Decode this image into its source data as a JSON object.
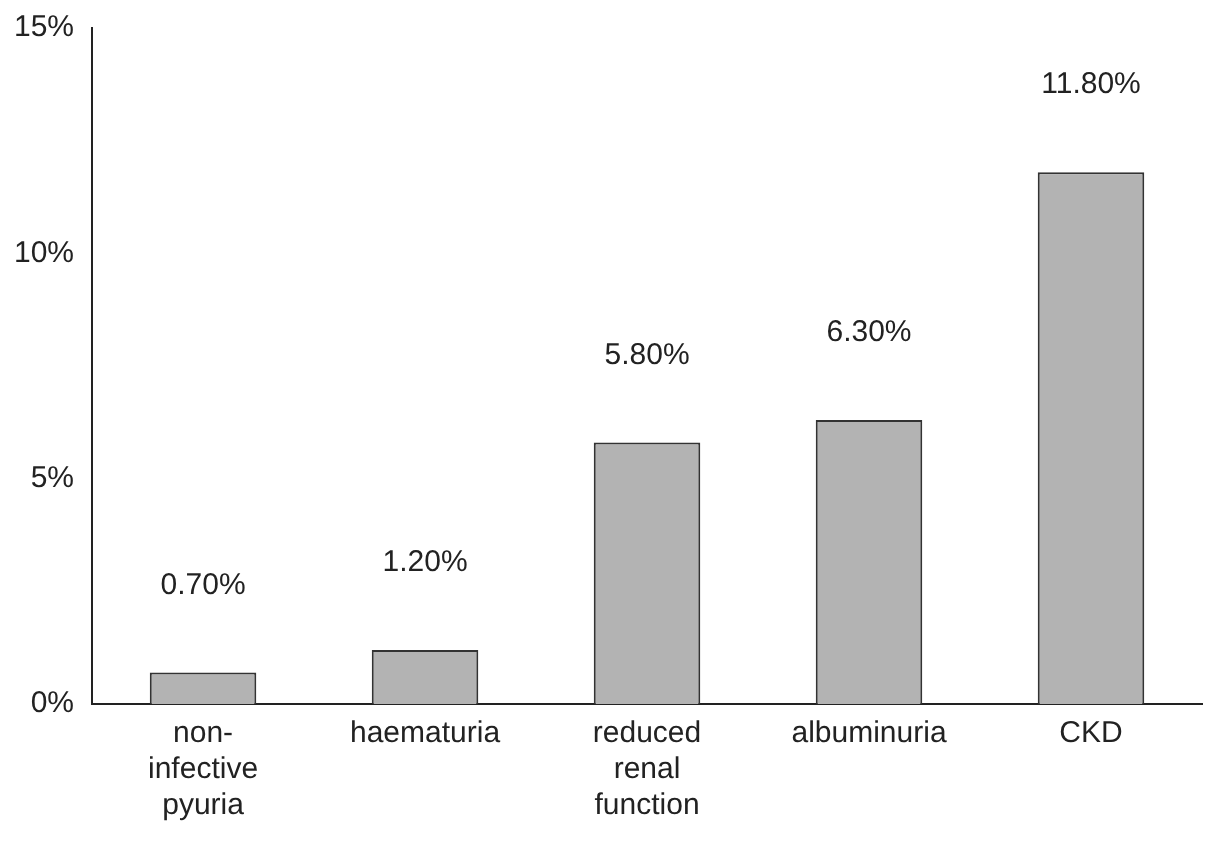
{
  "chart_data": {
    "type": "bar",
    "categories": [
      "non-infective pyuria",
      "haematuria",
      "reduced renal function",
      "albuminuria",
      "CKD"
    ],
    "values": [
      0.7,
      1.2,
      5.8,
      6.3,
      11.8
    ],
    "value_labels": [
      "0.70%",
      "1.20%",
      "5.80%",
      "6.30%",
      "11.80%"
    ],
    "color": "#b3b3b3",
    "ylim": [
      0,
      15
    ],
    "yticks": [
      {
        "value": 0,
        "label": "0%"
      },
      {
        "value": 5,
        "label": "5%"
      },
      {
        "value": 10,
        "label": "10%"
      },
      {
        "value": 15,
        "label": "15%"
      }
    ],
    "grid": false,
    "legend": false
  }
}
